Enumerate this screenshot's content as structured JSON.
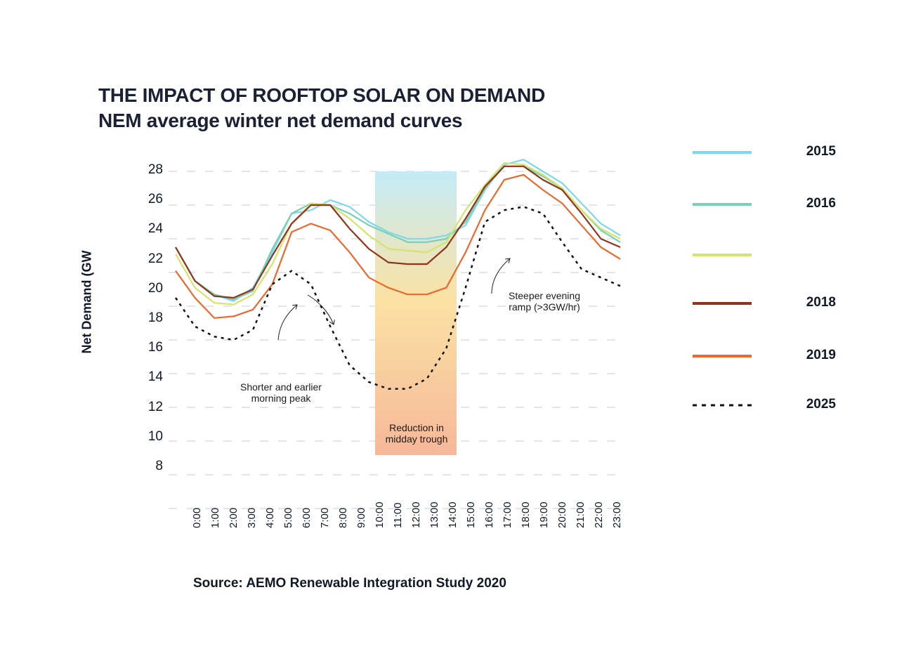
{
  "chart_data": {
    "type": "line",
    "title": "THE IMPACT OF ROOFTOP SOLAR ON DEMAND",
    "subtitle": "NEM average winter net demand curves",
    "xlabel": "",
    "ylabel": "Net Demand (GW",
    "ylim": [
      8,
      28
    ],
    "yticks": [
      28,
      26,
      24,
      22,
      20,
      18,
      16,
      14,
      12,
      10,
      8
    ],
    "grid": "horizontal dashed",
    "legend_placement": "right",
    "x": [
      "0:00",
      "1:00",
      "2:00",
      "3:00",
      "4:00",
      "5:00",
      "6:00",
      "7:00",
      "8:00",
      "9:00",
      "10:00",
      "11:00",
      "12:00",
      "13:00",
      "14:00",
      "15:00",
      "16:00",
      "17:00",
      "18:00",
      "19:00",
      "20:00",
      "21:00",
      "22:00",
      "23:00"
    ],
    "series": [
      {
        "name": "2015",
        "color": "#7dd8f0",
        "style": "solid",
        "values": [
          23.5,
          21.5,
          20.7,
          20.3,
          21.1,
          23.2,
          25.5,
          25.7,
          26.3,
          25.9,
          25.0,
          24.4,
          24.0,
          24.0,
          24.2,
          24.8,
          26.9,
          28.4,
          28.7,
          28.0,
          27.3,
          26.1,
          24.9,
          24.2
        ]
      },
      {
        "name": "2016",
        "color": "#79d1b4",
        "style": "solid",
        "values": [
          23.5,
          21.5,
          20.7,
          20.4,
          20.9,
          23.4,
          25.5,
          26.1,
          26.0,
          25.5,
          24.8,
          24.3,
          23.8,
          23.8,
          24.0,
          25.0,
          27.0,
          28.3,
          28.3,
          27.7,
          27.0,
          25.7,
          24.5,
          23.8
        ]
      },
      {
        "name": "",
        "color": "#d6e36c",
        "style": "solid",
        "values": [
          23.1,
          21.1,
          20.2,
          20.1,
          20.7,
          22.5,
          24.9,
          26.1,
          26.0,
          25.2,
          24.2,
          23.4,
          23.3,
          23.2,
          23.8,
          25.7,
          27.2,
          28.5,
          28.4,
          27.8,
          27.0,
          25.7,
          24.6,
          24.0
        ]
      },
      {
        "name": "2018",
        "color": "#93331a",
        "style": "solid",
        "values": [
          23.5,
          21.5,
          20.6,
          20.5,
          21.0,
          23.0,
          24.9,
          26.0,
          26.0,
          24.6,
          23.4,
          22.6,
          22.5,
          22.5,
          23.5,
          25.2,
          27.1,
          28.3,
          28.3,
          27.5,
          26.9,
          25.5,
          24.0,
          23.5
        ]
      },
      {
        "name": "2019",
        "color": "#ea6a2e",
        "style": "solid",
        "values": [
          22.1,
          20.5,
          19.3,
          19.4,
          19.8,
          21.3,
          24.4,
          24.9,
          24.5,
          23.2,
          21.7,
          21.1,
          20.7,
          20.7,
          21.1,
          23.2,
          25.7,
          27.5,
          27.8,
          26.9,
          26.1,
          24.8,
          23.5,
          22.8
        ]
      },
      {
        "name": "2025",
        "color": "#111111",
        "style": "dotted",
        "values": [
          20.5,
          18.8,
          18.2,
          18.0,
          18.6,
          21.3,
          22.1,
          21.3,
          18.8,
          16.5,
          15.5,
          15.1,
          15.1,
          15.7,
          17.5,
          21.1,
          25.0,
          25.7,
          25.9,
          25.5,
          23.8,
          22.2,
          21.7,
          21.2
        ]
      }
    ],
    "shaded_region": {
      "x_start": "10:00",
      "x_end": "14:00",
      "label": "Reduction in midday trough"
    },
    "annotations": [
      {
        "text": "Shorter and earlier morning peak"
      },
      {
        "text": "Reduction in midday trough"
      },
      {
        "text": "Steeper evening ramp (>3GW/hr)"
      }
    ]
  },
  "title_line1": "THE IMPACT OF ROOFTOP SOLAR ON DEMAND",
  "title_line2": "NEM average winter net demand curves",
  "notes": {
    "morning_1": "Shorter and earlier",
    "morning_2": "morning peak",
    "midday_1": "Reduction in",
    "midday_2": "midday trough",
    "evening_1": "Steeper evening",
    "evening_2": "ramp (>3GW/hr)"
  },
  "source": "Source: AEMO Renewable Integration Study 2020"
}
